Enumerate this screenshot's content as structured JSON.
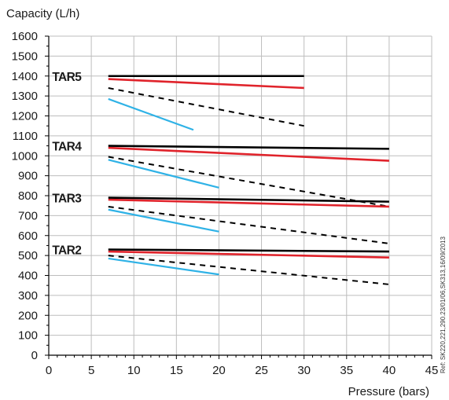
{
  "chart_data": {
    "type": "line",
    "title": "Capacity (L/h)",
    "xlabel": "Pressure (bars)",
    "ylabel": "Capacity (L/h)",
    "xlim": [
      0,
      45
    ],
    "ylim": [
      0,
      1600
    ],
    "x_ticks": [
      "0",
      "5",
      "10",
      "15",
      "20",
      "25",
      "30",
      "35",
      "40",
      "45"
    ],
    "y_ticks": [
      "0",
      "100",
      "200",
      "300",
      "400",
      "500",
      "600",
      "700",
      "800",
      "900",
      "1000",
      "1100",
      "1200",
      "1300",
      "1400",
      "1500",
      "1600"
    ],
    "grid": true,
    "reference": "Ref: SK220,221,290.23/01/06,SK313,16/09/2013",
    "colors": {
      "black": "#000000",
      "red": "#e0232b",
      "dashed": "#000000",
      "blue": "#2fb2e6",
      "grid": "#bdbdbd"
    },
    "groups": [
      {
        "name": "TAR5",
        "series": [
          {
            "style": "black",
            "x": [
              7,
              30
            ],
            "y": [
              1400,
              1400
            ]
          },
          {
            "style": "red",
            "x": [
              7,
              30
            ],
            "y": [
              1385,
              1340
            ]
          },
          {
            "style": "dashed",
            "x": [
              7,
              30
            ],
            "y": [
              1340,
              1150
            ]
          },
          {
            "style": "blue",
            "x": [
              7,
              17
            ],
            "y": [
              1285,
              1130
            ]
          }
        ]
      },
      {
        "name": "TAR4",
        "series": [
          {
            "style": "black",
            "x": [
              7,
              40
            ],
            "y": [
              1050,
              1035
            ]
          },
          {
            "style": "red",
            "x": [
              7,
              40
            ],
            "y": [
              1040,
              975
            ]
          },
          {
            "style": "dashed",
            "x": [
              7,
              40
            ],
            "y": [
              995,
              745
            ]
          },
          {
            "style": "blue",
            "x": [
              7,
              20
            ],
            "y": [
              980,
              840
            ]
          }
        ]
      },
      {
        "name": "TAR3",
        "series": [
          {
            "style": "black",
            "x": [
              7,
              40
            ],
            "y": [
              790,
              770
            ]
          },
          {
            "style": "red",
            "x": [
              7,
              40
            ],
            "y": [
              780,
              745
            ]
          },
          {
            "style": "dashed",
            "x": [
              7,
              40
            ],
            "y": [
              745,
              560
            ]
          },
          {
            "style": "blue",
            "x": [
              7,
              20
            ],
            "y": [
              730,
              620
            ]
          }
        ]
      },
      {
        "name": "TAR2",
        "series": [
          {
            "style": "black",
            "x": [
              7,
              40
            ],
            "y": [
              530,
              520
            ]
          },
          {
            "style": "red",
            "x": [
              7,
              40
            ],
            "y": [
              520,
              490
            ]
          },
          {
            "style": "dashed",
            "x": [
              7,
              40
            ],
            "y": [
              500,
              355
            ]
          },
          {
            "style": "blue",
            "x": [
              7,
              20
            ],
            "y": [
              485,
              405
            ]
          }
        ]
      }
    ]
  }
}
